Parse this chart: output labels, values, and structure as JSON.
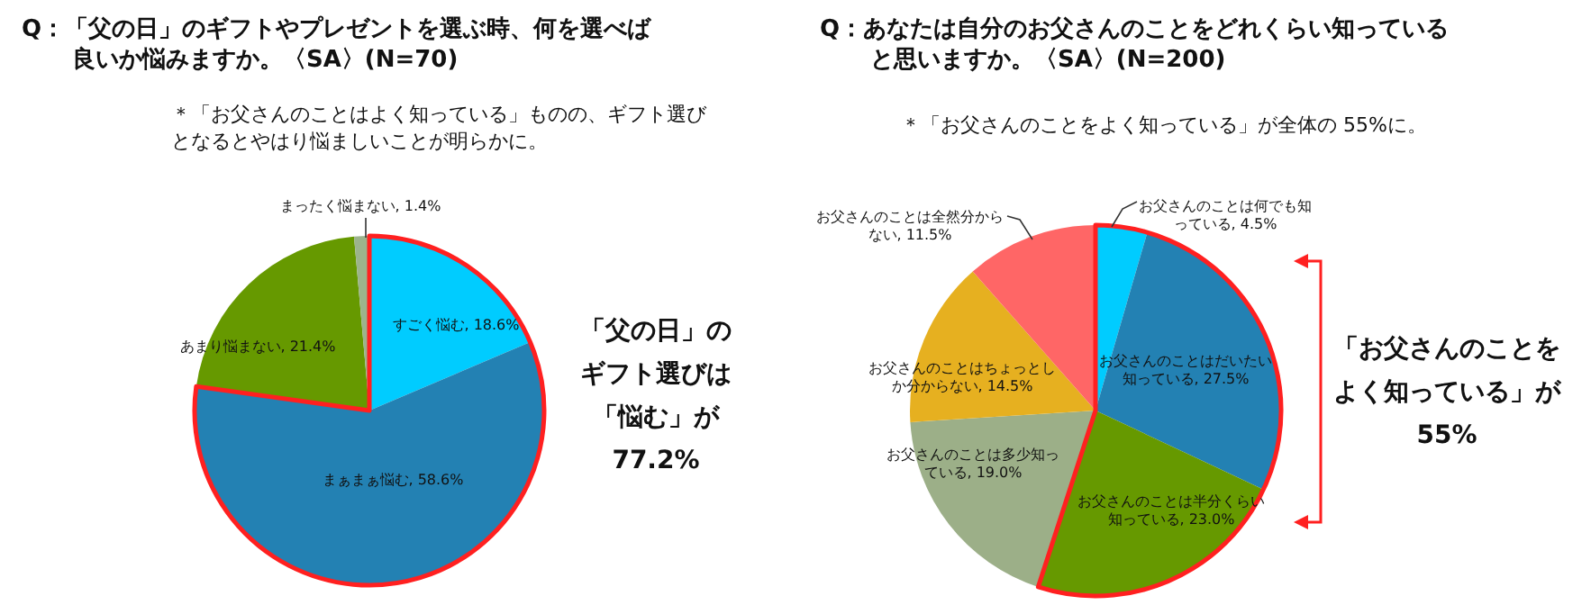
{
  "chart_data": [
    {
      "type": "pie",
      "title": "Q：「父の日」のギフトやプレゼントを選ぶ時、何を選べば良いか悩みますか。〈SA〉(N=70)",
      "subtitle": "＊「お父さんのことはよく知っている」ものの、ギフト選びとなるとやはり悩ましいことが明らかに。",
      "categories": [
        "すごく悩む",
        "まぁまぁ悩む",
        "あまり悩まない",
        "まったく悩まない"
      ],
      "values": [
        18.6,
        58.6,
        21.4,
        1.4
      ],
      "colors": [
        "#00ccff",
        "#2381b3",
        "#669900",
        "#9cb38c"
      ],
      "value_labels": [
        "18.6%",
        "58.6%",
        "21.4%",
        "1.4%"
      ],
      "annotations": [
        "「父の日」のギフト選びは「悩む」が77.2%"
      ]
    },
    {
      "type": "pie",
      "title": "Q：あなたは自分のお父さんのことをどれくらい知っていると思いますか。〈SA〉(N=200)",
      "subtitle": "＊「お父さんのことをよく知っている」が全体の 55%に。",
      "categories": [
        "お父さんのことは何でも知っている",
        "お父さんのことはだいたい知っている",
        "お父さんのことは半分くらい知っている",
        "お父さんのことは多少知っている",
        "お父さんのことはちょっとしか分からない",
        "お父さんのことは全然分からない"
      ],
      "values": [
        4.5,
        27.5,
        23.0,
        19.0,
        14.5,
        11.5
      ],
      "colors": [
        "#00ccff",
        "#2381b3",
        "#669900",
        "#9caf88",
        "#e6b020",
        "#ff6666"
      ],
      "value_labels": [
        "4.5%",
        "27.5%",
        "23.0%",
        "19.0%",
        "14.5%",
        "11.5%"
      ],
      "annotations": [
        "「お父さんのことをよく知っている」が55%"
      ]
    }
  ]
}
